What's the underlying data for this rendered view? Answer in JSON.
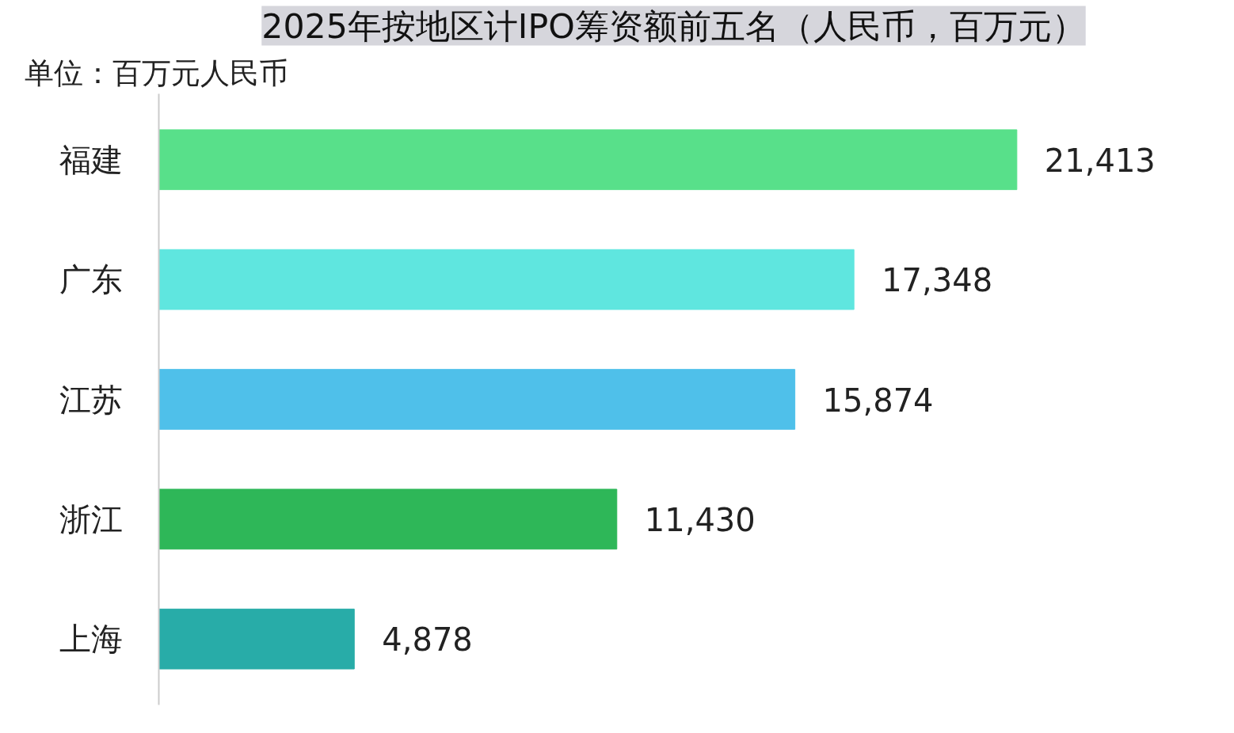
{
  "chart_data": {
    "type": "bar",
    "orientation": "horizontal",
    "title": "2025年按地区计IPO筹资额前五名（人民币，百万元）",
    "subtitle": "单位：百万元人民币",
    "categories": [
      "福建",
      "广东",
      "江苏",
      "浙江",
      "上海"
    ],
    "values": [
      21413,
      17348,
      15874,
      11430,
      4878
    ],
    "colors": [
      "#58e08a",
      "#5fe6df",
      "#4fc0ea",
      "#2eb758",
      "#28aca8"
    ],
    "value_labels": [
      "21,413",
      "17,348",
      "15,874",
      "11,430",
      "4,878"
    ],
    "grid": false,
    "tick_labels": "y"
  }
}
